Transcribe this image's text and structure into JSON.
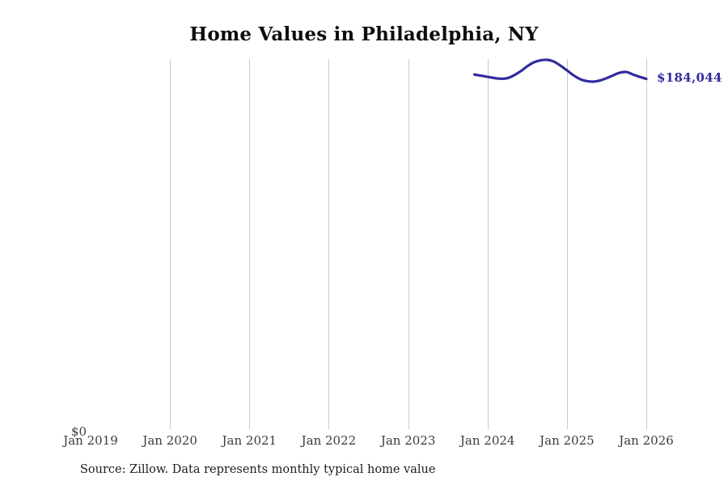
{
  "chart": {
    "title": "Home Values in Philadelphia, NY",
    "end_label": "$184,044",
    "y_zero_label": "$0",
    "colors": {
      "line": "#302c9e",
      "grid": "#c9c9c9",
      "tick_text": "#3b3b3b",
      "title_text": "#0d0d0d",
      "source_text": "#1c1c1c"
    }
  },
  "source": {
    "text": "Source: Zillow. Data represents monthly typical home value"
  },
  "chart_data": {
    "type": "line",
    "title": "Home Values in Philadelphia, NY",
    "xlabel": "",
    "ylabel": "",
    "x_tick_labels": [
      "Jan 2019",
      "Jan 2020",
      "Jan 2021",
      "Jan 2022",
      "Jan 2023",
      "Jan 2024",
      "Jan 2025",
      "Jan 2026"
    ],
    "gridlines_at": [
      "Jan 2020",
      "Jan 2021",
      "Jan 2022",
      "Jan 2023",
      "Jan 2024",
      "Jan 2025",
      "Jan 2026"
    ],
    "grid": "vertical-only",
    "legend_position": "none",
    "ylim": [
      0,
      194000
    ],
    "y_zero_tick_label": "$0",
    "end_annotation": "$184,044",
    "end_value": 184044,
    "series": [
      {
        "name": "Monthly typical home value",
        "x": [
          "2023-11",
          "2023-12",
          "2024-01",
          "2024-02",
          "2024-03",
          "2024-04",
          "2024-05",
          "2024-06",
          "2024-07",
          "2024-08",
          "2024-09",
          "2024-10",
          "2024-11",
          "2024-12",
          "2025-01",
          "2025-02",
          "2025-03",
          "2025-04",
          "2025-05",
          "2025-06",
          "2025-07",
          "2025-08",
          "2025-09",
          "2025-10",
          "2025-11",
          "2025-12",
          "2026-01"
        ],
        "values": [
          186300,
          185700,
          185100,
          184500,
          184100,
          184400,
          185900,
          188000,
          190600,
          192700,
          193700,
          194000,
          193100,
          191000,
          188500,
          185900,
          183900,
          182900,
          182600,
          183200,
          184400,
          185900,
          187300,
          187600,
          186300,
          185100,
          184044
        ]
      }
    ]
  }
}
